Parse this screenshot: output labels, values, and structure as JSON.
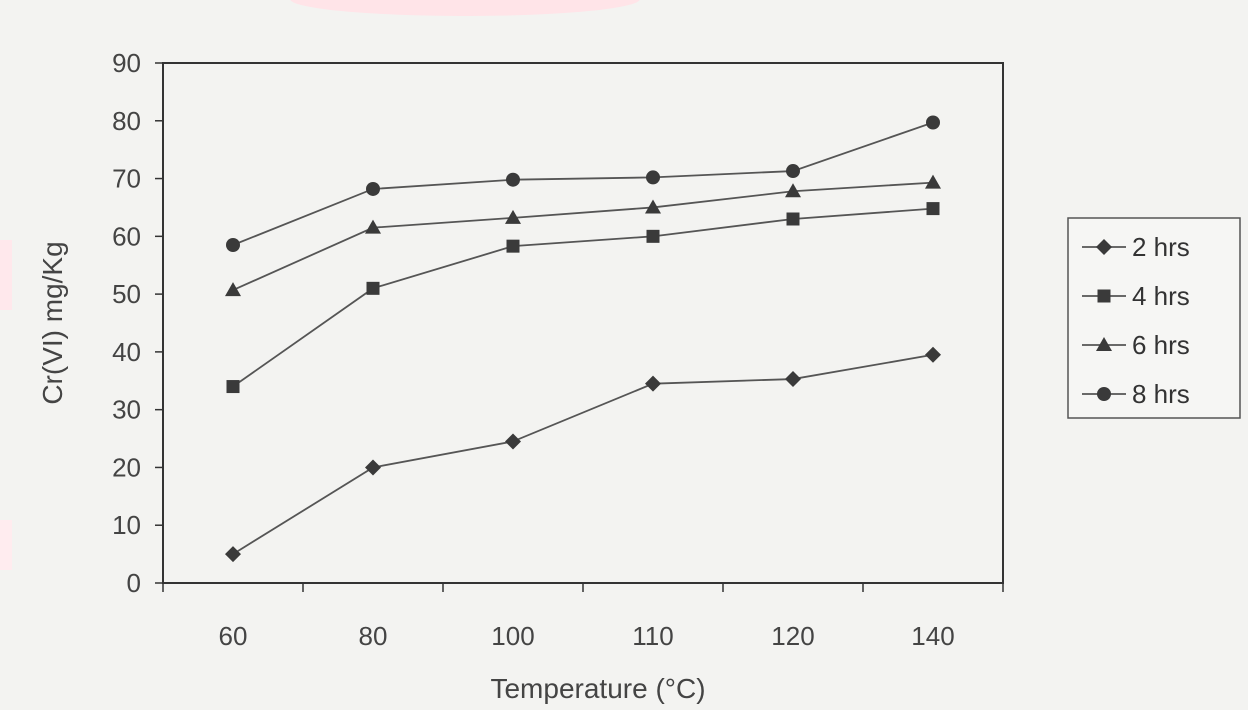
{
  "chart_data": {
    "type": "line",
    "categories": [
      "60",
      "80",
      "100",
      "110",
      "120",
      "140"
    ],
    "xlabel": "Temperature (°C)",
    "ylabel": "Cr(VI) mg/Kg",
    "ylim": [
      0,
      90
    ],
    "yticks": [
      0,
      10,
      20,
      30,
      40,
      50,
      60,
      70,
      80,
      90
    ],
    "grid": false,
    "legend_position": "right",
    "series": [
      {
        "name": "2 hrs",
        "marker": "diamond",
        "values": [
          5,
          20,
          24.5,
          34.5,
          35.3,
          39.5
        ]
      },
      {
        "name": "4 hrs",
        "marker": "square",
        "values": [
          34,
          51,
          58.3,
          60,
          63,
          64.8
        ]
      },
      {
        "name": "6 hrs",
        "marker": "triangle",
        "values": [
          50.7,
          61.5,
          63.2,
          65,
          67.8,
          69.3
        ]
      },
      {
        "name": "8 hrs",
        "marker": "circle",
        "values": [
          58.5,
          68.2,
          69.8,
          70.2,
          71.3,
          79.7
        ]
      }
    ],
    "colors": {
      "line": "#555555",
      "marker": "#3a3a3a",
      "axis": "#333333",
      "background": "#f3f3f1"
    }
  }
}
